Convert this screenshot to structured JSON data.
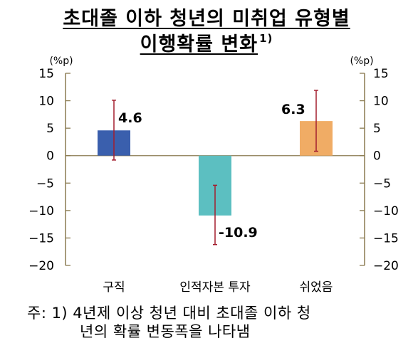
{
  "title_line1": "초대졸 이하 청년의 미취업 유형별",
  "title_line2": "이행확률 변화",
  "title_footnote_mark": "1)",
  "note_line1": "주: 1) 4년제 이상 청년 대비 초대졸 이하 청",
  "note_line2": "년의 확률 변동폭을 나타냄",
  "chart_data": {
    "type": "bar",
    "title": "초대졸 이하 청년의 미취업 유형별 이행확률 변화",
    "categories": [
      "구직",
      "인적자본 투자",
      "쉬었음"
    ],
    "values": [
      4.6,
      -10.9,
      6.3
    ],
    "value_labels": [
      "4.6",
      "-10.9",
      "6.3"
    ],
    "error_low": [
      -0.8,
      -16.2,
      0.8
    ],
    "error_high": [
      10.1,
      -5.4,
      11.9
    ],
    "bar_colors": [
      "#3a5fad",
      "#5cbfc1",
      "#f0ac65"
    ],
    "error_color": "#a31e2e",
    "axis_color": "#8a7a50",
    "ylabel_left": "(%p)",
    "ylabel_right": "(%p)",
    "ylim": [
      -20,
      15
    ],
    "yticks": [
      15,
      10,
      5,
      0,
      -5,
      -10,
      -15,
      -20
    ],
    "ytick_labels": [
      "15",
      "10",
      "5",
      "0",
      "−5",
      "−10",
      "−15",
      "−20"
    ],
    "grid": false
  }
}
